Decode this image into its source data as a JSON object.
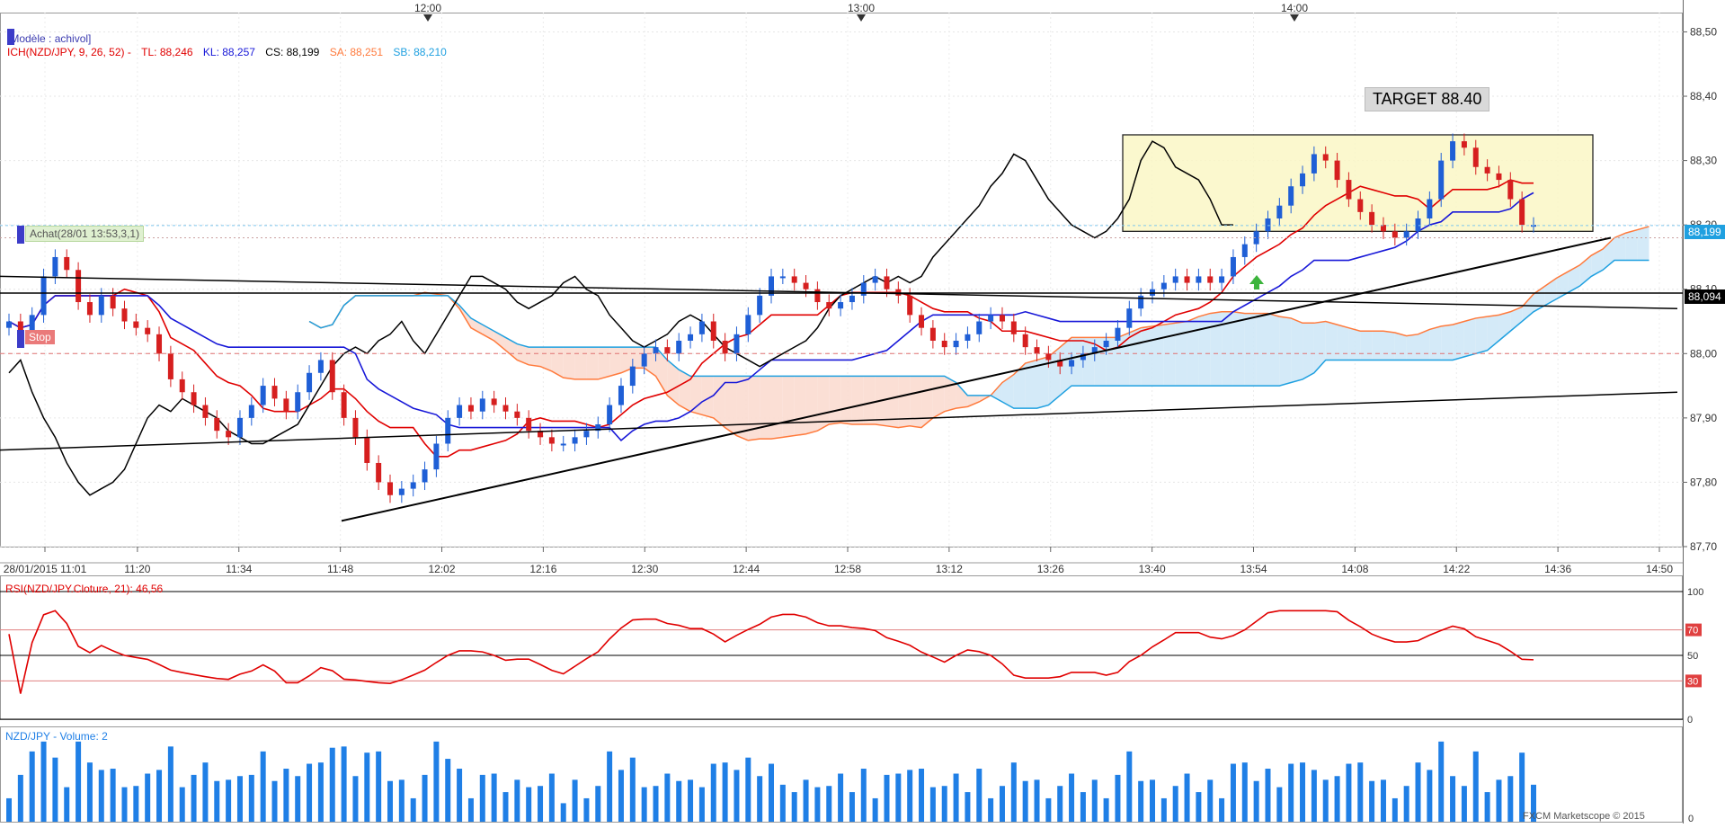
{
  "colors": {
    "tenkan": "#e00000",
    "kijun": "#1818d8",
    "chikou": "#000000",
    "senkou_a": "#ff7a3c",
    "senkou_b": "#1fa0e0",
    "cloud_bull": "#cfe8f7",
    "cloud_bear": "#fbdcd0",
    "candle_up": "#1f5fd6",
    "candle_down": "#d61f1f",
    "rsi": "#e00000",
    "volume": "#1f7fe6",
    "box_fill": "#fbf7c6",
    "target_bg": "#d9d9d9"
  },
  "main": {
    "legend_model": "[Modèle : achivol]",
    "legend_ich": "ICH(NZD/JPY, 9, 26, 52) -",
    "tl": "TL: 88,246",
    "kl": "KL: 88,257",
    "cs": "CS: 88,199",
    "sa": "SA: 88,251",
    "sb": "SB: 88,210",
    "order_buy": "Achat(28/01 13:53,3,1)",
    "order_stop": "Stop",
    "target": "TARGET 88.40",
    "price_current": "88,199",
    "price_line": "88,094"
  },
  "rsi": {
    "label": "RSI(NZD/JPY.Cloture, 21): 46,56",
    "levels": [
      "100",
      "70",
      "50",
      "30",
      "0"
    ]
  },
  "volume": {
    "label": "NZD/JPY - Volume: 2",
    "watermark": "FXCM Marketscope © 2015"
  },
  "chart_data": {
    "type": "candlestick",
    "instrument": "NZD/JPY",
    "date": "28/01/2015",
    "top_time_markers": [
      "12:00",
      "13:00",
      "14:00"
    ],
    "x_ticks": [
      "28/01/2015 11:01",
      "11:20",
      "11:34",
      "11:48",
      "12:02",
      "12:16",
      "12:30",
      "12:44",
      "12:58",
      "13:12",
      "13:26",
      "13:40",
      "13:54",
      "14:08",
      "14:22",
      "14:36",
      "14:50"
    ],
    "y_ticks": [
      "88,50",
      "88,40",
      "88,30",
      "88,20",
      "88,10",
      "88,00",
      "87,90",
      "87,80",
      "87,70"
    ],
    "ylim": [
      87.7,
      88.53
    ],
    "close": [
      88.05,
      88.03,
      88.06,
      88.12,
      88.15,
      88.13,
      88.08,
      88.06,
      88.09,
      88.07,
      88.05,
      88.04,
      88.03,
      88.0,
      87.96,
      87.94,
      87.92,
      87.9,
      87.88,
      87.87,
      87.9,
      87.92,
      87.95,
      87.93,
      87.91,
      87.94,
      87.97,
      87.99,
      87.94,
      87.9,
      87.87,
      87.83,
      87.8,
      87.78,
      87.79,
      87.8,
      87.82,
      87.86,
      87.9,
      87.92,
      87.91,
      87.93,
      87.92,
      87.91,
      87.9,
      87.88,
      87.87,
      87.86,
      87.86,
      87.87,
      87.88,
      87.89,
      87.92,
      87.95,
      87.98,
      88.0,
      88.01,
      88.0,
      88.02,
      88.03,
      88.05,
      88.02,
      88.0,
      88.03,
      88.06,
      88.09,
      88.12,
      88.12,
      88.11,
      88.1,
      88.08,
      88.07,
      88.08,
      88.09,
      88.11,
      88.12,
      88.1,
      88.09,
      88.06,
      88.04,
      88.02,
      88.01,
      88.02,
      88.03,
      88.05,
      88.06,
      88.05,
      88.03,
      88.01,
      88.0,
      87.99,
      87.98,
      87.99,
      88.0,
      88.01,
      88.02,
      88.04,
      88.07,
      88.09,
      88.1,
      88.11,
      88.12,
      88.11,
      88.12,
      88.11,
      88.12,
      88.15,
      88.17,
      88.19,
      88.21,
      88.23,
      88.26,
      88.28,
      88.31,
      88.3,
      88.27,
      88.24,
      88.22,
      88.2,
      88.19,
      88.18,
      88.19,
      88.21,
      88.24,
      88.3,
      88.33,
      88.32,
      88.29,
      88.28,
      88.27,
      88.24,
      88.2,
      88.2
    ],
    "volume_ylim": [
      0,
      14
    ],
    "rsi_ylim": [
      0,
      100
    ],
    "rsi_last": 46.56,
    "levels": {
      "last_price": 88.199,
      "horizontal_line": 88.094,
      "dashed_stop": 88.0,
      "dotted_entry": 88.18,
      "target": 88.4,
      "box": {
        "top": 88.34,
        "bottom": 88.19,
        "from": "13:40",
        "to": "14:32"
      }
    }
  }
}
